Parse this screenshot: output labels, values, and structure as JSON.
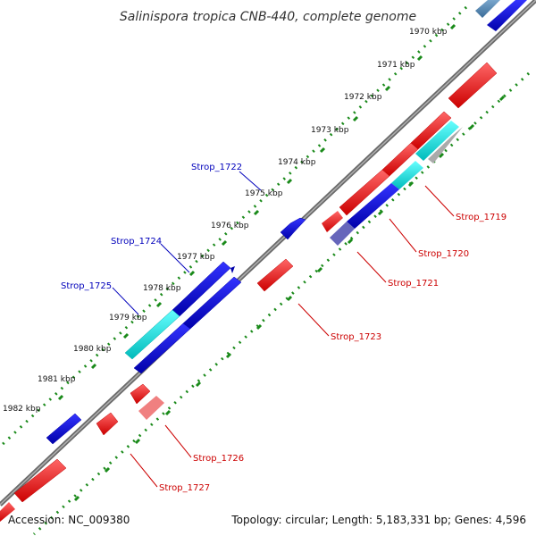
{
  "title": "Salinispora tropica CNB-440, complete genome",
  "footer": {
    "accession": "Accession: NC_009380",
    "summary": "Topology: circular; Length: 5,183,331 bp; Genes: 4,596"
  },
  "ticks": [
    "1970 kbp",
    "1971 kbp",
    "1972 kbp",
    "1973 kbp",
    "1974 kbp",
    "1975 kbp",
    "1976 kbp",
    "1977 kbp",
    "1978 kbp",
    "1979 kbp",
    "1980 kbp",
    "1981 kbp",
    "1982 kbp"
  ],
  "genes_forward_labeled": [
    "Strop_1722",
    "Strop_1724",
    "Strop_1725"
  ],
  "genes_reverse_labeled": [
    "Strop_1719",
    "Strop_1720",
    "Strop_1721",
    "Strop_1723",
    "Strop_1726",
    "Strop_1727"
  ],
  "colors": {
    "forward_gene": "#0000dd",
    "reverse_gene": "#ee0000",
    "rna_gene": "#00dddd",
    "backbone": "#808080",
    "tick_ring": "#1a8a1a",
    "forward_label": "#0000bb",
    "reverse_label": "#cc0000"
  }
}
